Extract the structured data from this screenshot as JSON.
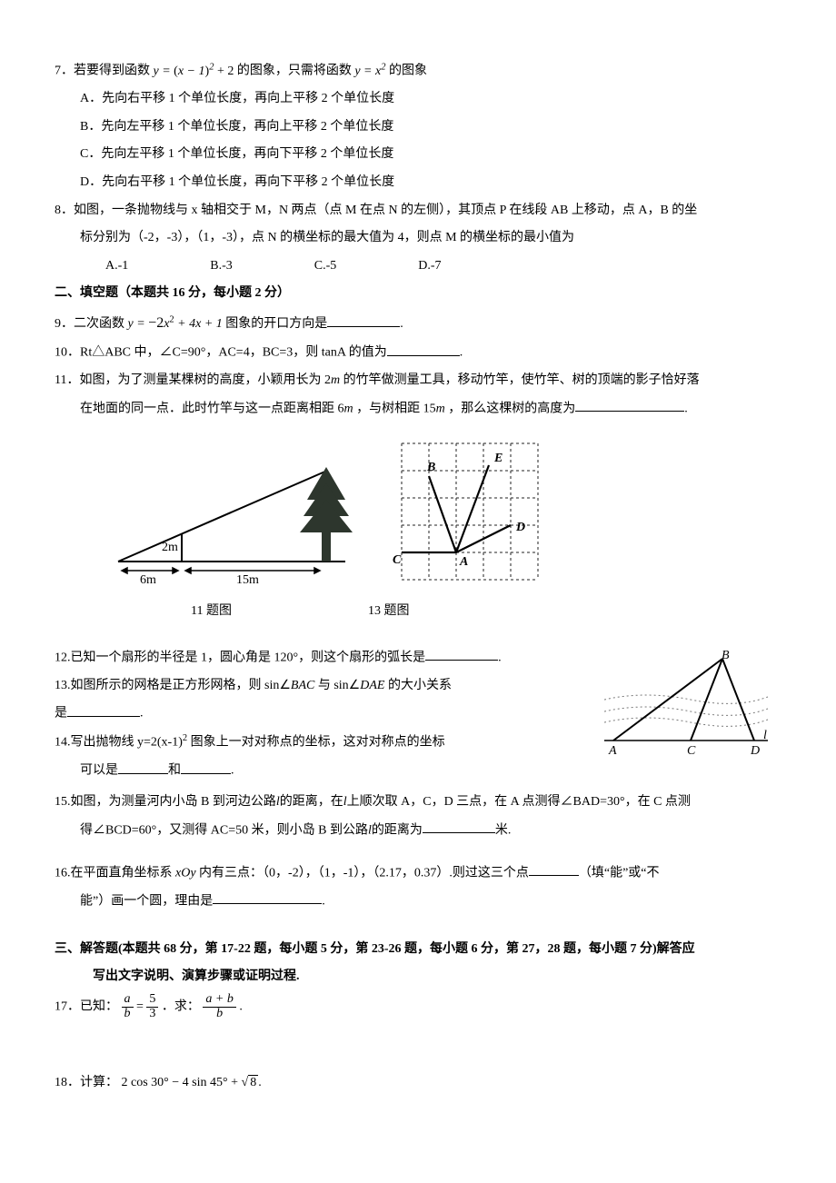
{
  "q7": {
    "stem_a": "7．若要得到函数 ",
    "eq1_lhs": "y = ",
    "eq1_open": "(",
    "eq1_inner": "x − 1",
    "eq1_close": ")",
    "eq1_exp": "2",
    "eq1_tail": " + 2",
    "stem_b": " 的图象，只需将函数 ",
    "eq2": "y = x",
    "eq2_exp": "2",
    "stem_c": " 的图象",
    "A": "A．先向右平移 1 个单位长度，再向上平移 2 个单位长度",
    "B": "B．先向左平移 1 个单位长度，再向上平移 2 个单位长度",
    "C": "C．先向左平移 1 个单位长度，再向下平移 2 个单位长度",
    "D": "D．先向右平移 1 个单位长度，再向下平移 2 个单位长度"
  },
  "q8": {
    "l1": "8．如图，一条抛物线与 x 轴相交于 M，N 两点（点 M 在点 N 的左侧），其顶点 P 在线段 AB 上移动，点 A，B 的坐",
    "l2": "标分别为（-2，-3），（1，-3），点 N 的横坐标的最大值为 4，则点 M 的横坐标的最小值为",
    "A": "A.-1",
    "B": "B.-3",
    "C": "C.-5",
    "D": "D.-7"
  },
  "sec2": "二、填空题（本题共 16 分，每小题 2 分）",
  "q9": {
    "a": "9．二次函数 ",
    "eq_lhs": "y = ",
    "coef": "−2",
    "var": "x",
    "exp": "2",
    "tail": " + 4x + 1",
    "b": " 图象的开口方向是",
    "c": "."
  },
  "q10": {
    "a": "10．Rt△ABC 中，∠C=90°，AC=4，BC=3，则 tanA 的值为",
    "b": "."
  },
  "q11": {
    "l1_a": "11．如图，为了测量某棵树的高度，小颖用长为 2",
    "l1_m1": "m",
    "l1_b": " 的竹竿做测量工具，移动竹竿，使竹竿、树的顶端的影子恰好落",
    "l2_a": "在地面的同一点．此时竹竿与这一点距离相距 6",
    "l2_m1": "m",
    "l2_b": " ，与树相距 15",
    "l2_m2": "m",
    "l2_c": " ，那么这棵树的高度为",
    "l2_d": "."
  },
  "fig11": {
    "pole_label": "2m",
    "seg1": "6m",
    "seg2": "15m",
    "arrow_color": "#000000",
    "tree_color": "#2d362d"
  },
  "fig13": {
    "grid_cols": 5,
    "grid_rows": 5,
    "cell": 30,
    "labels": {
      "A": "A",
      "B": "B",
      "C": "C",
      "D": "D",
      "E": "E"
    },
    "A": [
      2,
      4
    ],
    "B": [
      1,
      1.2
    ],
    "C": [
      0,
      4
    ],
    "D": [
      4,
      3
    ],
    "E": [
      3.2,
      0.8
    ],
    "grid_color": "#222222",
    "line_color": "#000000"
  },
  "figcap": {
    "c11": "11 题图",
    "c13": "13 题图"
  },
  "q12": {
    "a": "12.已知一个扇形的半径是 1，圆心角是 120°，则这个扇形的弧长是",
    "b": "."
  },
  "q13": {
    "a": "13.如图所示的网格是正方形网格，则 sin∠",
    "bac": "BAC",
    "b": " 与 sin∠",
    "dae": "DAE",
    "c": " 的大小关系",
    "d": "是",
    "e": "."
  },
  "q14": {
    "a": "14.写出抛物线 y=2(x-1)",
    "exp": "2",
    "b": " 图象上一对对称点的坐标，这对对称点的坐标",
    "c": "可以是",
    "d": "和",
    "e": "."
  },
  "fig15": {
    "A": "A",
    "B": "B",
    "C": "C",
    "D": "D",
    "l": "l",
    "water_color": "#666666"
  },
  "q15": {
    "l1_a": "15.如图，为测量河内小岛 B 到河边公路",
    "l1_l": "l",
    "l1_b": "的距离，在",
    "l1_l2": "l",
    "l1_c": "上顺次取 A，C，D 三点，在 A 点测得∠BAD=30°，在 C 点测",
    "l2_a": "得∠BCD=60°，又测得 AC=50 米，则小岛 B 到公路",
    "l2_l": "l",
    "l2_b": "的距离为",
    "l2_c": "米."
  },
  "q16": {
    "l1_a": "16.在平面直角坐标系 ",
    "xoy": "xOy",
    "l1_b": " 内有三点：（0，-2），（1，-1），（2.17，0.37）.则过这三个点",
    "l1_c": "（填“能”或“不",
    "l2_a": "能”）画一个圆，理由是",
    "l2_b": "."
  },
  "sec3": {
    "l1": "三、解答题(本题共 68 分，第 17-22 题，每小题 5 分，第 23-26 题，每小题 6 分，第 27，28 题，每小题 7 分)解答应",
    "l2": "写出文字说明、演算步骤或证明过程."
  },
  "q17": {
    "a": "17．已知：",
    "f1n": "a",
    "f1d": "b",
    "eq": "=",
    "f2n": "5",
    "f2d": "3",
    "b": "．求：",
    "f3n": "a + b",
    "f3d": "b",
    "c": "."
  },
  "q18": {
    "a": "18．计算：",
    "t1": "2 cos 30° − 4 sin 45° + ",
    "rad": "8",
    "b": "."
  }
}
